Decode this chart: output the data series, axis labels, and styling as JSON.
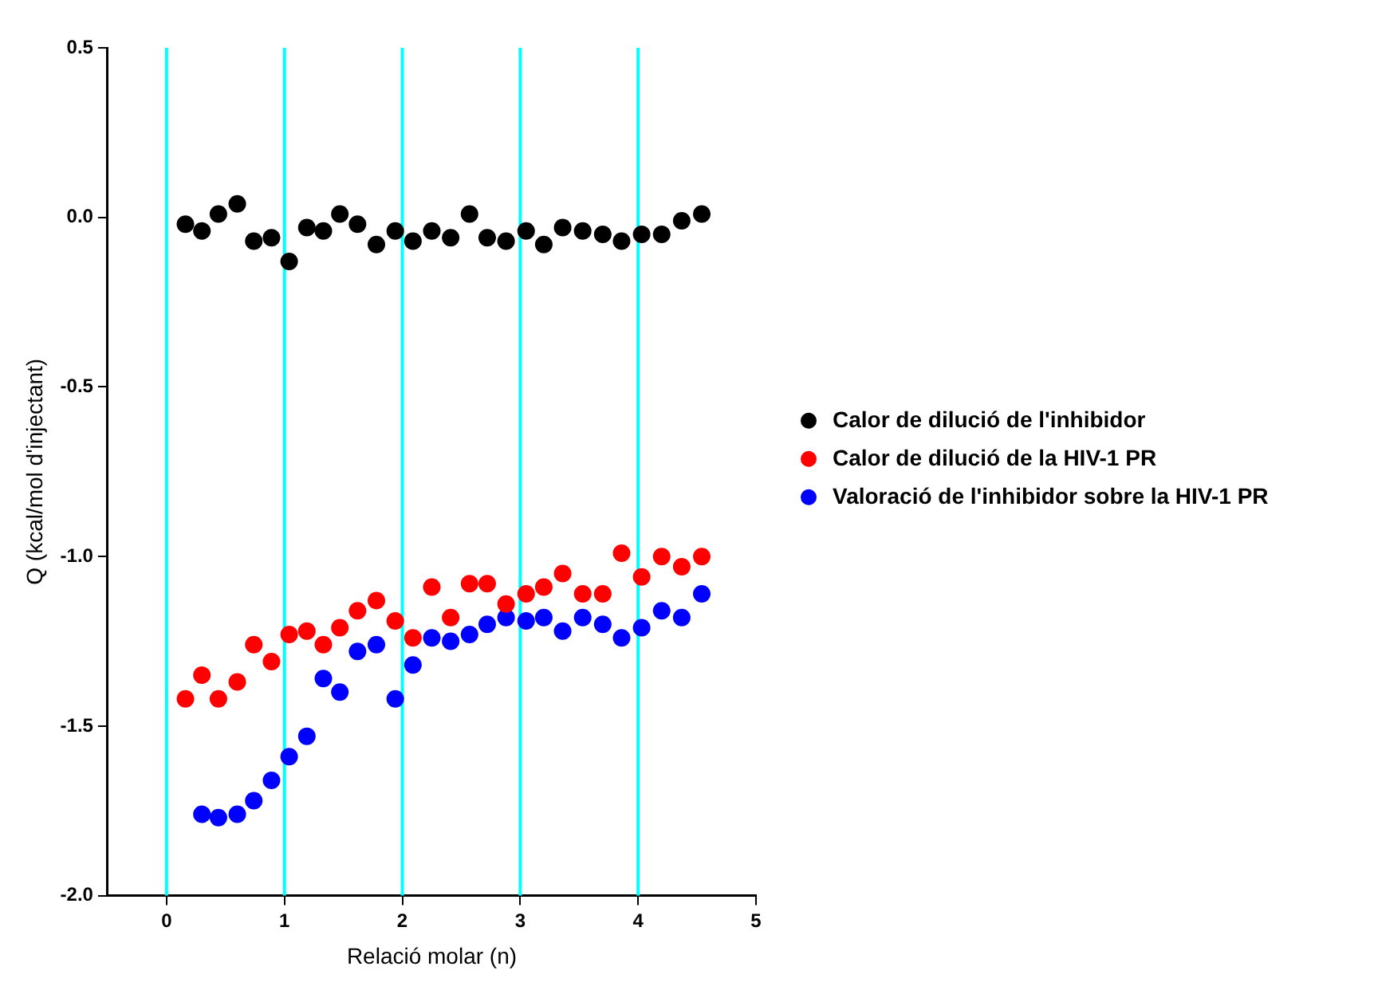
{
  "chart_data": {
    "type": "scatter",
    "xlabel": "Relació molar (n)",
    "ylabel": "Q (kcal/mol d'injectant)",
    "x": [
      0.16,
      0.3,
      0.44,
      0.6,
      0.74,
      0.89,
      1.04,
      1.19,
      1.33,
      1.47,
      1.62,
      1.78,
      1.94,
      2.09,
      2.25,
      2.41,
      2.57,
      2.72,
      2.88,
      3.05,
      3.2,
      3.36,
      3.53,
      3.7,
      3.86,
      4.03,
      4.2,
      4.37,
      4.54
    ],
    "series": [
      {
        "name": "Calor de dilució de l'inhibidor",
        "color": "#000000",
        "values": [
          -0.02,
          -0.04,
          0.01,
          0.04,
          -0.07,
          -0.06,
          -0.13,
          -0.03,
          -0.04,
          0.01,
          -0.02,
          -0.08,
          -0.04,
          -0.07,
          -0.04,
          -0.06,
          0.01,
          -0.06,
          -0.07,
          -0.04,
          -0.08,
          -0.03,
          -0.04,
          -0.05,
          -0.07,
          -0.05,
          -0.05,
          -0.01,
          0.01
        ]
      },
      {
        "name": "Calor de dilució de la HIV-1 PR",
        "color": "#ff0000",
        "values": [
          -1.42,
          -1.35,
          -1.42,
          -1.37,
          -1.26,
          -1.31,
          -1.23,
          -1.22,
          -1.26,
          -1.21,
          -1.16,
          -1.13,
          -1.19,
          -1.24,
          -1.09,
          -1.18,
          -1.08,
          -1.08,
          -1.14,
          -1.11,
          -1.09,
          -1.05,
          -1.11,
          -1.11,
          -0.99,
          -1.06,
          -1.0,
          -1.03,
          -1.0
        ]
      },
      {
        "name": "Valoració de l'inhibidor sobre la HIV-1 PR",
        "color": "#0000ff",
        "x": [
          0.3,
          0.44,
          0.6,
          0.74,
          0.89,
          1.04,
          1.19,
          1.33,
          1.47,
          1.62,
          1.78,
          1.94,
          2.09,
          2.25,
          2.41,
          2.57,
          2.72,
          2.88,
          3.05,
          3.2,
          3.36,
          3.53,
          3.7,
          3.86,
          4.03,
          4.2,
          4.37,
          4.54
        ],
        "values": [
          -1.76,
          -1.77,
          -1.76,
          -1.72,
          -1.66,
          -1.59,
          -1.53,
          -1.36,
          -1.4,
          -1.28,
          -1.26,
          -1.42,
          -1.32,
          -1.24,
          -1.25,
          -1.23,
          -1.2,
          -1.18,
          -1.19,
          -1.18,
          -1.22,
          -1.18,
          -1.2,
          -1.24,
          -1.21,
          -1.16,
          -1.18,
          -1.11
        ]
      }
    ],
    "xlim": [
      -0.5,
      5
    ],
    "xticks": [
      0,
      1,
      2,
      3,
      4,
      5
    ],
    "ylim": [
      -2.0,
      0.5
    ],
    "yticks": [
      {
        "value": -2,
        "label": "-2.0"
      },
      {
        "value": -1.5,
        "label": "-1.5"
      },
      {
        "value": -1,
        "label": "-1.0"
      },
      {
        "value": -0.5,
        "label": "-0.5"
      },
      {
        "value": 0,
        "label": "0.0"
      },
      {
        "value": 0.5,
        "label": "0.5"
      }
    ],
    "ref_lines": [
      {
        "axis": "x",
        "value": 0,
        "color": "#00ffff"
      },
      {
        "axis": "x",
        "value": 1,
        "color": "#00ffff"
      },
      {
        "axis": "x",
        "value": 2,
        "color": "#00ffff"
      },
      {
        "axis": "x",
        "value": 3,
        "color": "#00ffff"
      },
      {
        "axis": "x",
        "value": 4,
        "color": "#00ffff"
      }
    ],
    "grid": false,
    "legend": "right",
    "marker": "circle"
  }
}
